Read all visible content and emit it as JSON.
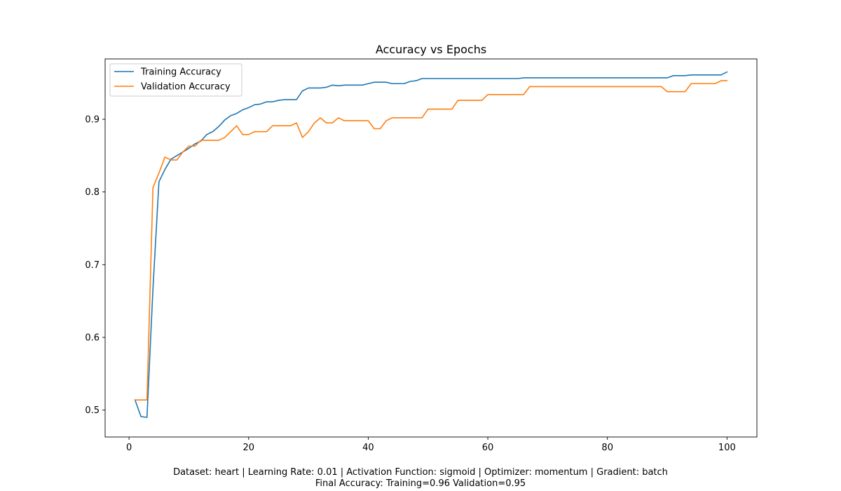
{
  "chart_data": {
    "type": "line",
    "title": "Accuracy vs Epochs",
    "xlabel": "",
    "ylabel": "",
    "xlim": [
      -4,
      105
    ],
    "ylim": [
      0.463,
      0.983
    ],
    "x_ticks": [
      0,
      20,
      40,
      60,
      80,
      100
    ],
    "y_ticks": [
      0.5,
      0.6,
      0.7,
      0.8,
      0.9
    ],
    "grid": false,
    "legend_position": "upper left",
    "x": [
      1,
      2,
      3,
      4,
      5,
      6,
      7,
      8,
      9,
      10,
      11,
      12,
      13,
      14,
      15,
      16,
      17,
      18,
      19,
      20,
      21,
      22,
      23,
      24,
      25,
      26,
      27,
      28,
      29,
      30,
      31,
      32,
      33,
      34,
      35,
      36,
      37,
      38,
      39,
      40,
      41,
      42,
      43,
      44,
      45,
      46,
      47,
      48,
      49,
      50,
      51,
      52,
      53,
      54,
      55,
      56,
      57,
      58,
      59,
      60,
      61,
      62,
      63,
      64,
      65,
      66,
      67,
      68,
      69,
      70,
      71,
      72,
      73,
      74,
      75,
      76,
      77,
      78,
      79,
      80,
      81,
      82,
      83,
      84,
      85,
      86,
      87,
      88,
      89,
      90,
      91,
      92,
      93,
      94,
      95,
      96,
      97,
      98,
      99,
      100
    ],
    "series": [
      {
        "name": "Training Accuracy",
        "color": "#1f77b4",
        "values": [
          0.514,
          0.491,
          0.49,
          0.667,
          0.814,
          0.831,
          0.845,
          0.85,
          0.855,
          0.86,
          0.866,
          0.87,
          0.879,
          0.883,
          0.89,
          0.899,
          0.905,
          0.908,
          0.913,
          0.916,
          0.92,
          0.921,
          0.924,
          0.924,
          0.926,
          0.927,
          0.927,
          0.927,
          0.939,
          0.943,
          0.943,
          0.943,
          0.944,
          0.947,
          0.946,
          0.947,
          0.947,
          0.947,
          0.947,
          0.949,
          0.951,
          0.951,
          0.951,
          0.949,
          0.949,
          0.949,
          0.952,
          0.953,
          0.956,
          0.956,
          0.956,
          0.956,
          0.956,
          0.956,
          0.956,
          0.956,
          0.956,
          0.956,
          0.956,
          0.956,
          0.956,
          0.956,
          0.956,
          0.956,
          0.956,
          0.957,
          0.957,
          0.957,
          0.957,
          0.957,
          0.957,
          0.957,
          0.957,
          0.957,
          0.957,
          0.957,
          0.957,
          0.957,
          0.957,
          0.957,
          0.957,
          0.957,
          0.957,
          0.957,
          0.957,
          0.957,
          0.957,
          0.957,
          0.957,
          0.957,
          0.96,
          0.96,
          0.96,
          0.961,
          0.961,
          0.961,
          0.961,
          0.961,
          0.961,
          0.965
        ]
      },
      {
        "name": "Validation Accuracy",
        "color": "#ff7f0e",
        "values": [
          0.514,
          0.514,
          0.514,
          0.806,
          0.826,
          0.848,
          0.844,
          0.844,
          0.855,
          0.863,
          0.863,
          0.871,
          0.871,
          0.871,
          0.871,
          0.875,
          0.883,
          0.891,
          0.879,
          0.879,
          0.883,
          0.883,
          0.883,
          0.891,
          0.891,
          0.891,
          0.891,
          0.895,
          0.875,
          0.883,
          0.895,
          0.902,
          0.895,
          0.895,
          0.902,
          0.898,
          0.898,
          0.898,
          0.898,
          0.898,
          0.887,
          0.887,
          0.898,
          0.902,
          0.902,
          0.902,
          0.902,
          0.902,
          0.902,
          0.914,
          0.914,
          0.914,
          0.914,
          0.914,
          0.926,
          0.926,
          0.926,
          0.926,
          0.926,
          0.934,
          0.934,
          0.934,
          0.934,
          0.934,
          0.934,
          0.934,
          0.945,
          0.945,
          0.945,
          0.945,
          0.945,
          0.945,
          0.945,
          0.945,
          0.945,
          0.945,
          0.945,
          0.945,
          0.945,
          0.945,
          0.945,
          0.945,
          0.945,
          0.945,
          0.945,
          0.945,
          0.945,
          0.945,
          0.945,
          0.938,
          0.938,
          0.938,
          0.938,
          0.949,
          0.949,
          0.949,
          0.949,
          0.949,
          0.953,
          0.953
        ]
      }
    ]
  },
  "footer": {
    "line1": "Dataset: heart | Learning Rate: 0.01 | Activation Function: sigmoid | Optimizer: momentum | Gradient: batch",
    "line2": "Final Accuracy: Training=0.96 Validation=0.95"
  }
}
